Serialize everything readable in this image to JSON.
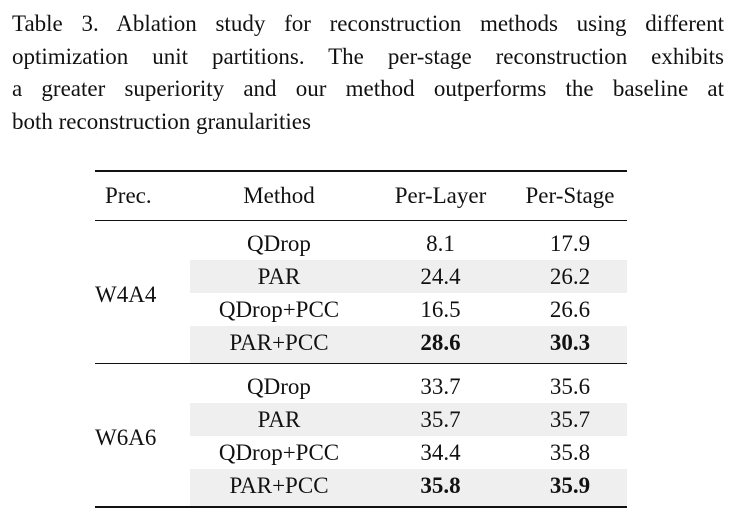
{
  "caption": {
    "lines": [
      "Table 3. Ablation study for reconstruction methods using different",
      "optimization unit partitions. The per-stage reconstruction exhibits",
      "a greater superiority and our method outperforms the baseline at",
      "both reconstruction granularities"
    ]
  },
  "table": {
    "headers": [
      "Prec.",
      "Method",
      "Per-Layer",
      "Per-Stage"
    ],
    "groups": [
      {
        "prec": "W4A4",
        "rows": [
          {
            "method": "QDrop",
            "per_layer": "8.1",
            "per_stage": "17.9"
          },
          {
            "method": "PAR",
            "per_layer": "24.4",
            "per_stage": "26.2"
          },
          {
            "method": "QDrop+PCC",
            "per_layer": "16.5",
            "per_stage": "26.6"
          },
          {
            "method": "PAR+PCC",
            "per_layer": "28.6",
            "per_stage": "30.3"
          }
        ]
      },
      {
        "prec": "W6A6",
        "rows": [
          {
            "method": "QDrop",
            "per_layer": "33.7",
            "per_stage": "35.6"
          },
          {
            "method": "PAR",
            "per_layer": "35.7",
            "per_stage": "35.7"
          },
          {
            "method": "QDrop+PCC",
            "per_layer": "34.4",
            "per_stage": "35.8"
          },
          {
            "method": "PAR+PCC",
            "per_layer": "35.8",
            "per_stage": "35.9"
          }
        ]
      }
    ]
  }
}
